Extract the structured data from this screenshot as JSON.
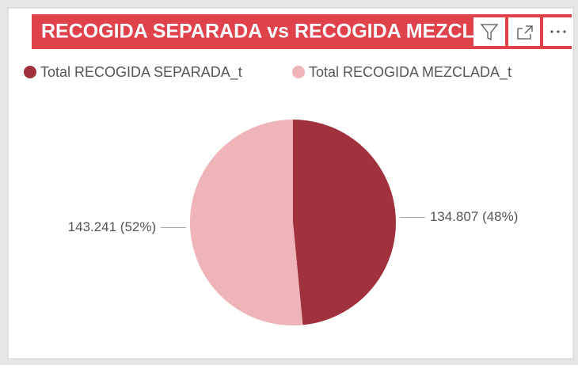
{
  "chart_data": {
    "type": "pie",
    "title": "RECOGIDA SEPARADA vs RECOGIDA MEZCLADA",
    "categories": [
      "Total RECOGIDA SEPARADA_t",
      "Total RECOGIDA MEZCLADA_t"
    ],
    "values": [
      134807,
      143241
    ],
    "value_labels": [
      "134.807 (48%)",
      "143.241 (52%)"
    ],
    "colors": [
      "#a1323d",
      "#eeb4b8"
    ],
    "legend": "top"
  }
}
